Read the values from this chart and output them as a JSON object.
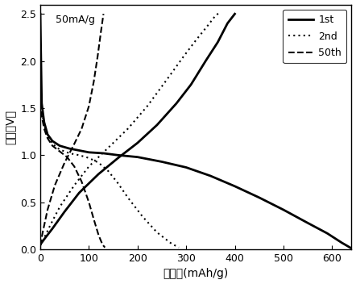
{
  "title_annotation": "50mA/g",
  "xlabel": "比容量(mAh/g)",
  "ylabel": "电压（V）",
  "xlim": [
    0,
    640
  ],
  "ylim": [
    0,
    2.6
  ],
  "xticks": [
    0,
    100,
    200,
    300,
    400,
    500,
    600
  ],
  "yticks": [
    0.0,
    0.5,
    1.0,
    1.5,
    2.0,
    2.5
  ],
  "legend_entries": [
    "1st",
    "2nd",
    "50th"
  ],
  "line_color": "#000000",
  "background_color": "#ffffff",
  "curve1_discharge_x": [
    0,
    3,
    8,
    15,
    25,
    40,
    60,
    80,
    100,
    130,
    160,
    200,
    250,
    300,
    350,
    400,
    450,
    500,
    550,
    590,
    620,
    640
  ],
  "curve1_discharge_y": [
    2.5,
    1.55,
    1.35,
    1.22,
    1.15,
    1.1,
    1.07,
    1.05,
    1.03,
    1.02,
    1.0,
    0.98,
    0.93,
    0.87,
    0.78,
    0.67,
    0.55,
    0.42,
    0.28,
    0.17,
    0.07,
    0.01
  ],
  "curve1_charge_x": [
    0,
    10,
    25,
    50,
    80,
    120,
    160,
    200,
    240,
    280,
    310,
    340,
    365,
    385,
    400
  ],
  "curve1_charge_y": [
    0.05,
    0.12,
    0.22,
    0.4,
    0.6,
    0.8,
    0.97,
    1.13,
    1.32,
    1.55,
    1.75,
    2.0,
    2.2,
    2.4,
    2.5
  ],
  "curve2_discharge_x": [
    0,
    3,
    8,
    15,
    25,
    40,
    60,
    80,
    100,
    120,
    140,
    160,
    180,
    210,
    240,
    270,
    285
  ],
  "curve2_discharge_y": [
    1.88,
    1.48,
    1.32,
    1.2,
    1.12,
    1.06,
    1.02,
    1.0,
    0.97,
    0.92,
    0.83,
    0.7,
    0.55,
    0.35,
    0.18,
    0.06,
    0.02
  ],
  "curve2_charge_x": [
    0,
    8,
    20,
    40,
    70,
    100,
    140,
    180,
    220,
    260,
    295,
    320,
    345,
    360,
    370
  ],
  "curve2_charge_y": [
    0.04,
    0.12,
    0.25,
    0.45,
    0.68,
    0.88,
    1.08,
    1.28,
    1.52,
    1.8,
    2.05,
    2.22,
    2.38,
    2.48,
    2.52
  ],
  "curve3_discharge_x": [
    0,
    3,
    8,
    15,
    25,
    40,
    55,
    70,
    85,
    100,
    110,
    120,
    128,
    133
  ],
  "curve3_discharge_y": [
    1.75,
    1.42,
    1.28,
    1.18,
    1.1,
    1.04,
    0.98,
    0.88,
    0.72,
    0.5,
    0.32,
    0.15,
    0.05,
    0.02
  ],
  "curve3_charge_x": [
    0,
    5,
    15,
    30,
    50,
    70,
    85,
    100,
    110,
    118,
    125,
    130
  ],
  "curve3_charge_y": [
    0.04,
    0.18,
    0.42,
    0.68,
    0.92,
    1.12,
    1.28,
    1.52,
    1.78,
    2.05,
    2.32,
    2.5
  ]
}
